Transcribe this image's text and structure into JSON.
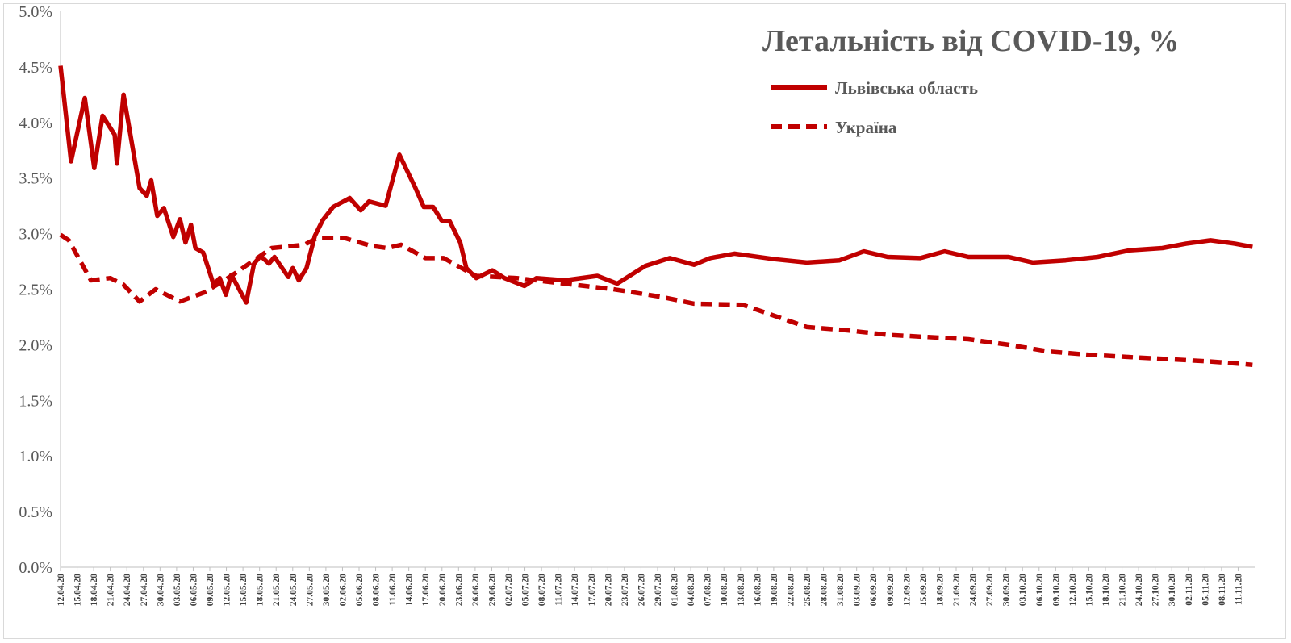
{
  "chart_data": {
    "type": "line",
    "title": "Летальність від COVID-19, %",
    "xlabel": "",
    "ylabel": "",
    "x_unit": "days since 12.04.20",
    "xlim": [
      0,
      216
    ],
    "ylim": [
      0,
      5
    ],
    "y_ticks": [
      0,
      0.5,
      1,
      1.5,
      2,
      2.5,
      3,
      3.5,
      4,
      4.5,
      5
    ],
    "y_tick_labels": [
      "0.0%",
      "0.5%",
      "1.0%",
      "1.5%",
      "2.0%",
      "2.5%",
      "3.0%",
      "3.5%",
      "4.0%",
      "4.5%",
      "5.0%"
    ],
    "x_tick_step_days": 3,
    "x_tick_labels": [
      "12.04.20",
      "15.04.20",
      "18.04.20",
      "21.04.20",
      "24.04.20",
      "27.04.20",
      "30.04.20",
      "03.05.20",
      "06.05.20",
      "09.05.20",
      "12.05.20",
      "15.05.20",
      "18.05.20",
      "21.05.20",
      "24.05.20",
      "27.05.20",
      "30.05.20",
      "02.06.20",
      "05.06.20",
      "08.06.20",
      "11.06.20",
      "14.06.20",
      "17.06.20",
      "20.06.20",
      "23.06.20",
      "26.06.20",
      "29.06.20",
      "02.07.20",
      "05.07.20",
      "08.07.20",
      "11.07.20",
      "14.07.20",
      "17.07.20",
      "20.07.20",
      "23.07.20",
      "26.07.20",
      "29.07.20",
      "01.08.20",
      "04.08.20",
      "07.08.20",
      "10.08.20",
      "13.08.20",
      "16.08.20",
      "19.08.20",
      "22.08.20",
      "25.08.20",
      "28.08.20",
      "31.08.20",
      "03.09.20",
      "06.09.20",
      "09.09.20",
      "12.09.20",
      "15.09.20",
      "18.09.20",
      "21.09.20",
      "24.09.20",
      "27.09.20",
      "30.09.20",
      "03.10.20",
      "06.10.20",
      "09.10.20",
      "12.10.20",
      "15.10.20",
      "18.10.20",
      "21.10.20",
      "24.10.20",
      "27.10.20",
      "30.10.20",
      "02.11.20",
      "05.11.20",
      "08.11.20",
      "11.11.20"
    ],
    "grid": false,
    "legend_position": "top-right",
    "color": "#C00000",
    "series": [
      {
        "name": "Львівська область",
        "style": "solid",
        "points": [
          [
            0,
            4.51
          ],
          [
            1.9,
            3.65
          ],
          [
            4.4,
            4.22
          ],
          [
            6.1,
            3.59
          ],
          [
            7.6,
            4.06
          ],
          [
            9.8,
            3.89
          ],
          [
            10.2,
            3.63
          ],
          [
            11.4,
            4.25
          ],
          [
            14.3,
            3.41
          ],
          [
            15.6,
            3.34
          ],
          [
            16.4,
            3.48
          ],
          [
            17.5,
            3.16
          ],
          [
            18.7,
            3.23
          ],
          [
            20.4,
            2.97
          ],
          [
            21.6,
            3.13
          ],
          [
            22.6,
            2.92
          ],
          [
            23.6,
            3.08
          ],
          [
            24.4,
            2.87
          ],
          [
            25.8,
            2.83
          ],
          [
            27.7,
            2.54
          ],
          [
            28.8,
            2.6
          ],
          [
            29.9,
            2.45
          ],
          [
            30.9,
            2.63
          ],
          [
            33.6,
            2.38
          ],
          [
            35.0,
            2.73
          ],
          [
            36.2,
            2.8
          ],
          [
            37.7,
            2.73
          ],
          [
            38.7,
            2.79
          ],
          [
            41.2,
            2.61
          ],
          [
            42.0,
            2.69
          ],
          [
            43.1,
            2.58
          ],
          [
            44.5,
            2.69
          ],
          [
            46.0,
            2.98
          ],
          [
            47.4,
            3.12
          ],
          [
            49.3,
            3.24
          ],
          [
            52.3,
            3.32
          ],
          [
            54.3,
            3.21
          ],
          [
            55.8,
            3.29
          ],
          [
            58.8,
            3.25
          ],
          [
            61.3,
            3.71
          ],
          [
            64.2,
            3.41
          ],
          [
            65.7,
            3.24
          ],
          [
            67.4,
            3.24
          ],
          [
            68.9,
            3.12
          ],
          [
            70.4,
            3.11
          ],
          [
            72.3,
            2.92
          ],
          [
            73.4,
            2.69
          ],
          [
            75.2,
            2.6
          ],
          [
            78.1,
            2.67
          ],
          [
            80.3,
            2.6
          ],
          [
            83.9,
            2.53
          ],
          [
            86.1,
            2.6
          ],
          [
            91.2,
            2.58
          ],
          [
            97.1,
            2.62
          ],
          [
            100.7,
            2.55
          ],
          [
            105.8,
            2.71
          ],
          [
            110.2,
            2.78
          ],
          [
            114.6,
            2.72
          ],
          [
            117.5,
            2.78
          ],
          [
            121.9,
            2.82
          ],
          [
            129.2,
            2.77
          ],
          [
            135.0,
            2.74
          ],
          [
            140.9,
            2.76
          ],
          [
            145.3,
            2.84
          ],
          [
            149.6,
            2.79
          ],
          [
            155.5,
            2.78
          ],
          [
            159.9,
            2.84
          ],
          [
            164.2,
            2.79
          ],
          [
            171.5,
            2.79
          ],
          [
            175.9,
            2.74
          ],
          [
            181.8,
            2.76
          ],
          [
            187.6,
            2.79
          ],
          [
            193.4,
            2.85
          ],
          [
            199.3,
            2.87
          ],
          [
            203.6,
            2.91
          ],
          [
            208.0,
            2.94
          ],
          [
            212.4,
            2.91
          ],
          [
            215.6,
            2.88
          ]
        ]
      },
      {
        "name": "Україна",
        "style": "dashed",
        "points": [
          [
            0,
            2.99
          ],
          [
            1.5,
            2.94
          ],
          [
            5.5,
            2.58
          ],
          [
            9.0,
            2.6
          ],
          [
            11.4,
            2.54
          ],
          [
            14.3,
            2.39
          ],
          [
            17.2,
            2.5
          ],
          [
            21.6,
            2.39
          ],
          [
            26.0,
            2.47
          ],
          [
            30.9,
            2.62
          ],
          [
            38.2,
            2.87
          ],
          [
            44.1,
            2.9
          ],
          [
            46.4,
            2.96
          ],
          [
            51.4,
            2.96
          ],
          [
            56.2,
            2.89
          ],
          [
            59.1,
            2.87
          ],
          [
            61.6,
            2.9
          ],
          [
            66.0,
            2.78
          ],
          [
            69.3,
            2.78
          ],
          [
            73.3,
            2.67
          ],
          [
            75.2,
            2.62
          ],
          [
            82.5,
            2.6
          ],
          [
            91.2,
            2.55
          ],
          [
            100.0,
            2.5
          ],
          [
            108.8,
            2.43
          ],
          [
            114.6,
            2.37
          ],
          [
            123.4,
            2.36
          ],
          [
            129.2,
            2.26
          ],
          [
            135.0,
            2.16
          ],
          [
            142.3,
            2.13
          ],
          [
            149.6,
            2.09
          ],
          [
            156.9,
            2.07
          ],
          [
            164.2,
            2.05
          ],
          [
            171.5,
            2.0
          ],
          [
            178.8,
            1.94
          ],
          [
            186.1,
            1.91
          ],
          [
            193.4,
            1.89
          ],
          [
            200.7,
            1.87
          ],
          [
            208.0,
            1.85
          ],
          [
            215.6,
            1.82
          ]
        ]
      }
    ]
  }
}
